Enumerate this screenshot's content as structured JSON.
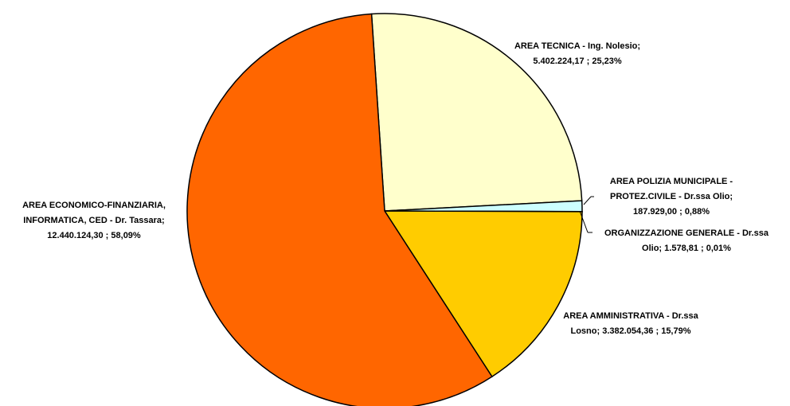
{
  "chart_data": {
    "type": "pie",
    "values": [
      5402224.17,
      187929.0,
      1578.81,
      3382054.36,
      12440124.3
    ],
    "value_labels": [
      [
        "AREA TECNICA - Ing. Nolesio;",
        "5.402.224,17 ; 25,23%"
      ],
      [
        "AREA POLIZIA MUNICIPALE -",
        "PROTEZ.CIVILE - Dr.ssa Olio;",
        "187.929,00 ; 0,88%"
      ],
      [
        "ORGANIZZAZIONE GENERALE - Dr.ssa",
        "Olio;  1.578,81 ; 0,01%"
      ],
      [
        "AREA AMMINISTRATIVA - Dr.ssa",
        "Losno;  3.382.054,36 ; 15,79%"
      ],
      [
        "AREA ECONOMICO-FINANZIARIA,",
        "INFORMATICA, CED - Dr. Tassara;",
        "12.440.124,30 ; 58,09%"
      ]
    ],
    "colors": [
      "#FFFFCC",
      "#CCFFFF",
      "#99CCFF",
      "#FFCC00",
      "#FF6600"
    ]
  }
}
